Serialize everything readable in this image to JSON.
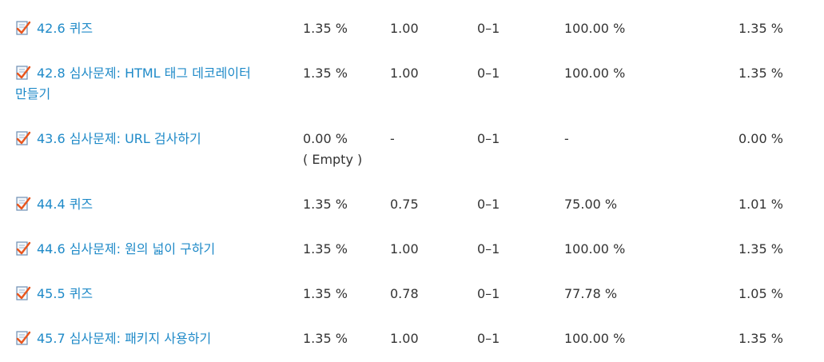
{
  "rows": [
    {
      "item": "42.6 퀴즈",
      "weight": "1.35 %",
      "grade": "1.00",
      "range": "0–1",
      "percentage": "100.00 %",
      "contribution": "1.35 %"
    },
    {
      "item_line1": "42.8 심사문제: HTML 태그 데코레이터",
      "item_line2": "만들기",
      "weight": "1.35 %",
      "grade": "1.00",
      "range": "0–1",
      "percentage": "100.00 %",
      "contribution": "1.35 %"
    },
    {
      "item": "43.6 심사문제: URL 검사하기",
      "weight": "0.00 %",
      "weight_note": "( Empty )",
      "grade": "-",
      "range": "0–1",
      "percentage": "-",
      "contribution": "0.00 %"
    },
    {
      "item": "44.4 퀴즈",
      "weight": "1.35 %",
      "grade": "0.75",
      "range": "0–1",
      "percentage": "75.00 %",
      "contribution": "1.01 %"
    },
    {
      "item": "44.6 심사문제: 원의 넓이 구하기",
      "weight": "1.35 %",
      "grade": "1.00",
      "range": "0–1",
      "percentage": "100.00 %",
      "contribution": "1.35 %"
    },
    {
      "item": "45.5 퀴즈",
      "weight": "1.35 %",
      "grade": "0.78",
      "range": "0–1",
      "percentage": "77.78 %",
      "contribution": "1.05 %"
    },
    {
      "item": "45.7 심사문제: 패키지 사용하기",
      "weight": "1.35 %",
      "grade": "1.00",
      "range": "0–1",
      "percentage": "100.00 %",
      "contribution": "1.35 %"
    }
  ],
  "icons": {
    "quiz": "quiz-check-icon",
    "check_color": "#e8551c",
    "page_color": "#6e8fb5"
  },
  "colors": {
    "link": "#1f8ac8",
    "text": "#333333"
  }
}
